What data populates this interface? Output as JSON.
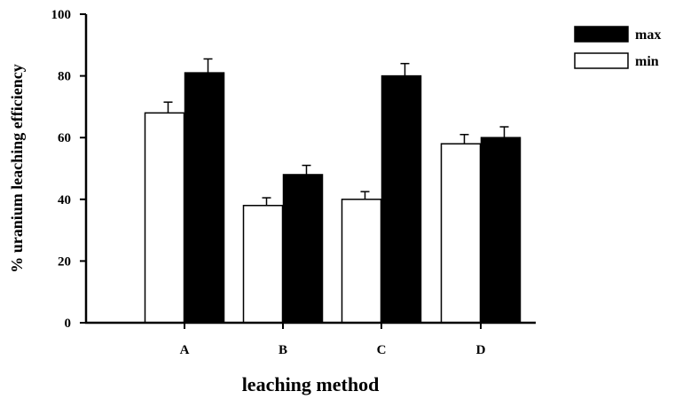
{
  "chart_data": {
    "type": "bar",
    "xlabel": "leaching method",
    "ylabel": "% uranium leaching efficiency",
    "categories": [
      "A",
      "B",
      "C",
      "D"
    ],
    "ylim": [
      0,
      100
    ],
    "yticks": [
      0,
      20,
      40,
      60,
      80,
      100
    ],
    "series": [
      {
        "name": "min",
        "values": [
          68,
          38,
          40,
          58
        ],
        "errors": [
          3.5,
          2.5,
          2.5,
          3
        ],
        "color": "#ffffff"
      },
      {
        "name": "max",
        "values": [
          81,
          48,
          80,
          60
        ],
        "errors": [
          4.5,
          3,
          4,
          3.5
        ],
        "color": "#000000"
      }
    ],
    "legend": {
      "position": "top-right",
      "order": [
        "max",
        "min"
      ]
    },
    "grid": false
  }
}
